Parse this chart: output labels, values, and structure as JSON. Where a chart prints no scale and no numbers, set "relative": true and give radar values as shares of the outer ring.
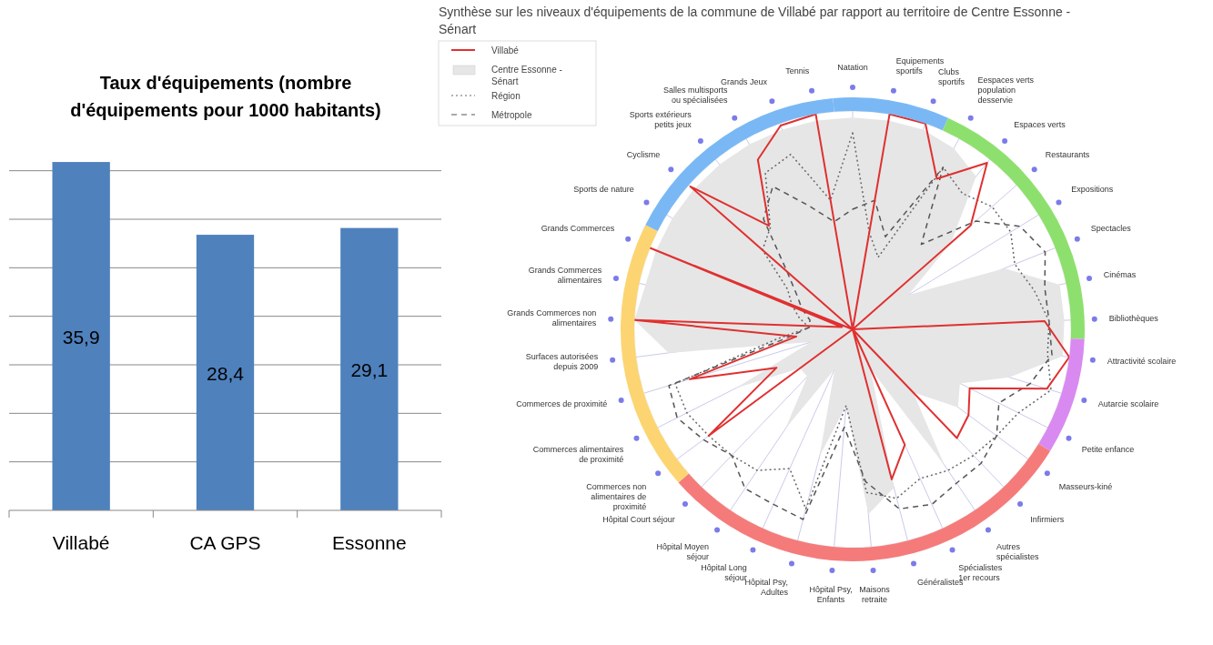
{
  "chart_data": [
    {
      "type": "bar",
      "title": "Taux d'équipements (nombre d'équipements pour 1000 habitants)",
      "categories": [
        "Villabé",
        "CA GPS",
        "Essonne"
      ],
      "values": [
        35.9,
        28.4,
        29.1
      ],
      "value_labels": [
        "35,9",
        "28,4",
        "29,1"
      ],
      "color": "#4f81bd",
      "ylim": [
        0,
        36
      ],
      "yticks": [
        {
          "value": 5,
          "label": null
        },
        {
          "value": 10,
          "label": null
        },
        {
          "value": 15,
          "label": null
        },
        {
          "value": 20,
          "label": null
        },
        {
          "value": 25,
          "label": null
        },
        {
          "value": 30,
          "label": null
        },
        {
          "value": 35,
          "label": null
        }
      ],
      "grid": "y",
      "tick_labels": "x"
    },
    {
      "type": "radar",
      "title": "Synthèse sur les niveaux d'équipements de la commune de Villabé par rapport au territoire de Centre Essonne - Sénart",
      "relative": true,
      "legend": "top left",
      "categories": [
        "Natation",
        "Equipements sportifs",
        "Clubs sportifs",
        "Eespaces verts population desservie",
        "Espaces verts",
        "Restaurants",
        "Expositions",
        "Spectacles",
        "Cinémas",
        "Bibliothèques",
        "Attractivité scolaire",
        "Autarcie scolaire",
        "Petite enfance",
        "Masseurs-kiné",
        "Infirmiers",
        "Autres spécialistes",
        "Spécialistes 1er recours",
        "Généralistes",
        "Maisons retraite",
        "Hôpital Psy, Enfants",
        "Hôpital Psy, Adultes",
        "Hôpital Long séjour",
        "Hôpital Moyen séjour",
        "Hôpital Court séjour",
        "Commerces non alimentaires de proximité",
        "Commerces alimentaires de proximité",
        "Commerces de proximité",
        "Surfaces autorisées depuis 2009",
        "Grands Commerces non alimentaires",
        "Grands Commerces alimentaires",
        "Grands Commerces",
        "Sports de nature",
        "Cyclisme",
        "Sports extérieurs petits jeux",
        "Salles multisports ou spécialisées",
        "Grands Jeux",
        "Tennis"
      ],
      "series": [
        {
          "name": "Villabé",
          "color": "#e03030",
          "line_style": "solid",
          "values": [
            0,
            1.0,
            1.0,
            0.79,
            0.98,
            0.72,
            0,
            0,
            0,
            0.88,
            1.0,
            0.93,
            0.6,
            0.66,
            0.69,
            0,
            0.58,
            0.71,
            0,
            0,
            0,
            0,
            0,
            0,
            0.82,
            0.39,
            0.78,
            0.26,
            1.0,
            0.05,
            1.0,
            0,
            0.99,
            0.61,
            0.89,
            0.99,
            1.0
          ]
        },
        {
          "name": "Centre Essonne - Sénart",
          "type": "area",
          "color": "#e6e6e6",
          "values": [
            0.97,
            0.97,
            0.97,
            0.95,
            0.9,
            0.6,
            0.3,
            0.75,
            0.97,
            0.97,
            0.97,
            0.75,
            0.55,
            0.6,
            0.4,
            0.75,
            0.2,
            0.75,
            0.85,
            0.35,
            0.6,
            0.2,
            0.55,
            0.3,
            0.3,
            0.6,
            0.2,
            0.85,
            1.0,
            0.97,
            0.97,
            0.97,
            0.97,
            0.97,
            0.97,
            0.97,
            0.97
          ]
        },
        {
          "name": "Région",
          "color": "#666666",
          "line_style": "dotted",
          "values": [
            0.9,
            0.45,
            0.35,
            0.85,
            0.8,
            0.85,
            0.85,
            0.8,
            0.85,
            0.9,
            0.9,
            0.95,
            0.85,
            0.82,
            0.8,
            0.78,
            0.75,
            0.8,
            0.75,
            0.35,
            0.85,
            0.7,
            0.78,
            0.8,
            0.82,
            0.85,
            0.85,
            0.35,
            0.2,
            0.25,
            0.3,
            0.35,
            0.55,
            0.6,
            0.82,
            0.85,
            0.6
          ]
        },
        {
          "name": "Métropole",
          "color": "#555555",
          "line_style": "dashed",
          "values": [
            0.55,
            0.6,
            0.45,
            0.85,
            0.5,
            0.75,
            0.9,
            0.95,
            0.9,
            0.9,
            0.92,
            0.85,
            0.75,
            0.82,
            0.85,
            0.85,
            0.88,
            0.85,
            0.7,
            0.45,
            0.9,
            0.88,
            0.88,
            0.8,
            0.85,
            0.9,
            0.88,
            0.3,
            0.2,
            0.2,
            0.25,
            0.3,
            0.4,
            0.65,
            0.75,
            0.6,
            0.5
          ]
        }
      ]
    }
  ]
}
